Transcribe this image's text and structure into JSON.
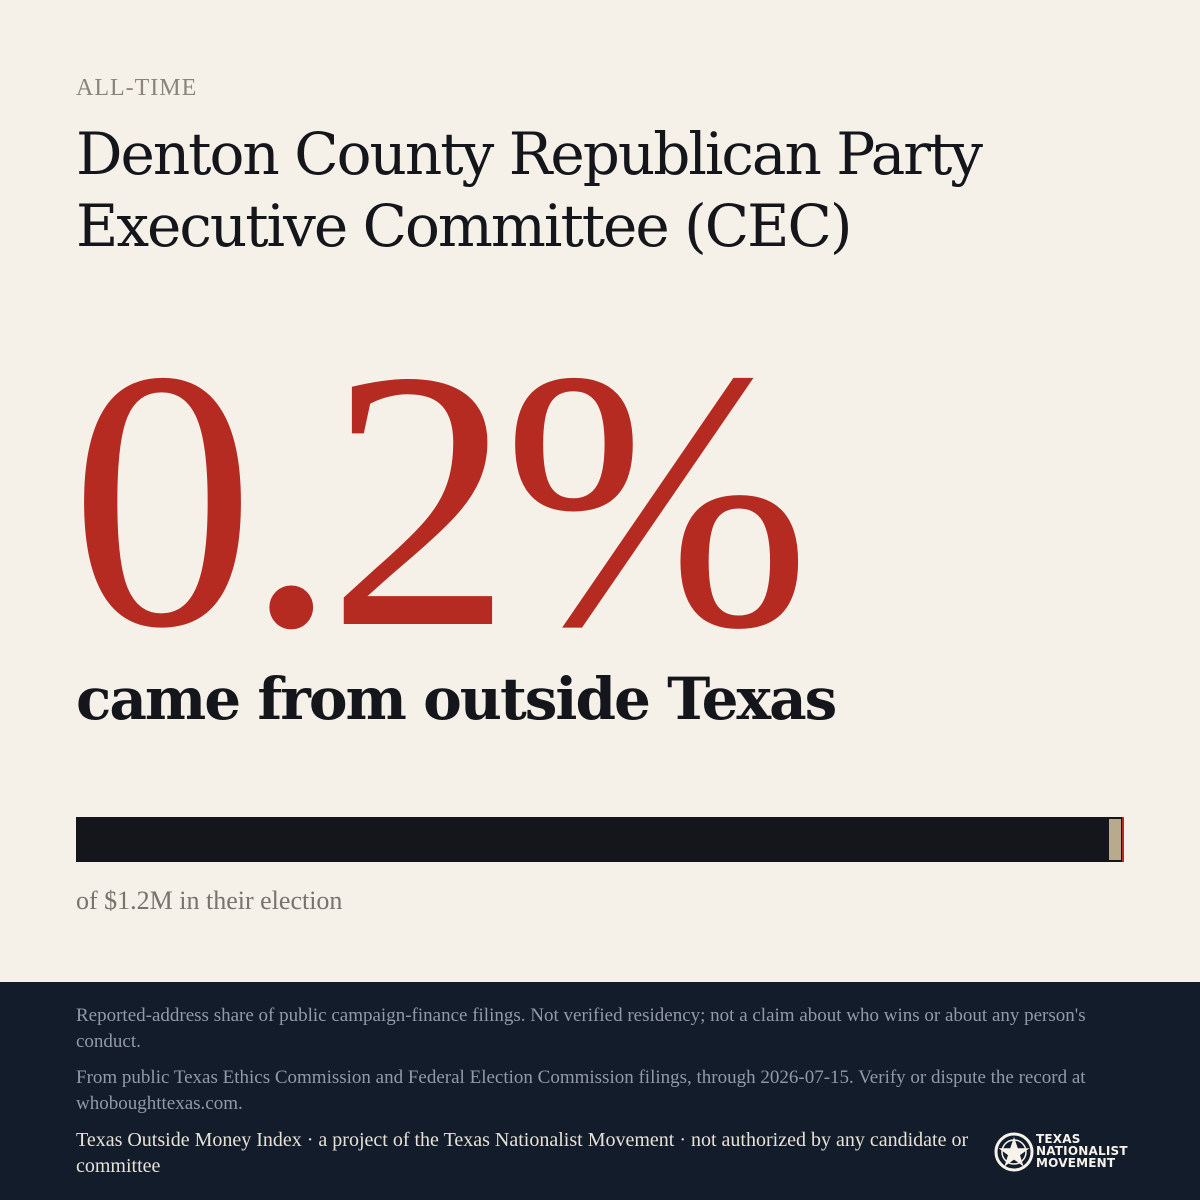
{
  "header": {
    "eyebrow": "ALL-TIME",
    "title": "Denton County Republican Party Executive Committee (CEC)"
  },
  "main": {
    "share": "0.2%",
    "share_value_percent": 0.2,
    "subhead": "came from outside Texas",
    "caption": "of $1.2M in their election"
  },
  "footer": {
    "disclaimer": "Reported-address share of public campaign-finance filings. Not verified residency; not a claim about who wins or about any person's conduct.",
    "source": "From public Texas Ethics Commission and Federal Election Commission filings, through 2026-07-15. Verify or dispute the record at whoboughttexas.com.",
    "credit": "Texas Outside Money Index · a project of the Texas Nationalist Movement · not authorized by any candidate or committee",
    "logo": {
      "line1": "TEXAS",
      "line2": "NATIONALIST",
      "line3": "MOVEMENT",
      "icon": "star-seal-icon"
    }
  },
  "colors": {
    "background": "#f5f0e8",
    "accent": "#b52a21",
    "text": "#14161b",
    "footer_background": "#121c2a",
    "bar_marker": "#b8aa8d"
  }
}
